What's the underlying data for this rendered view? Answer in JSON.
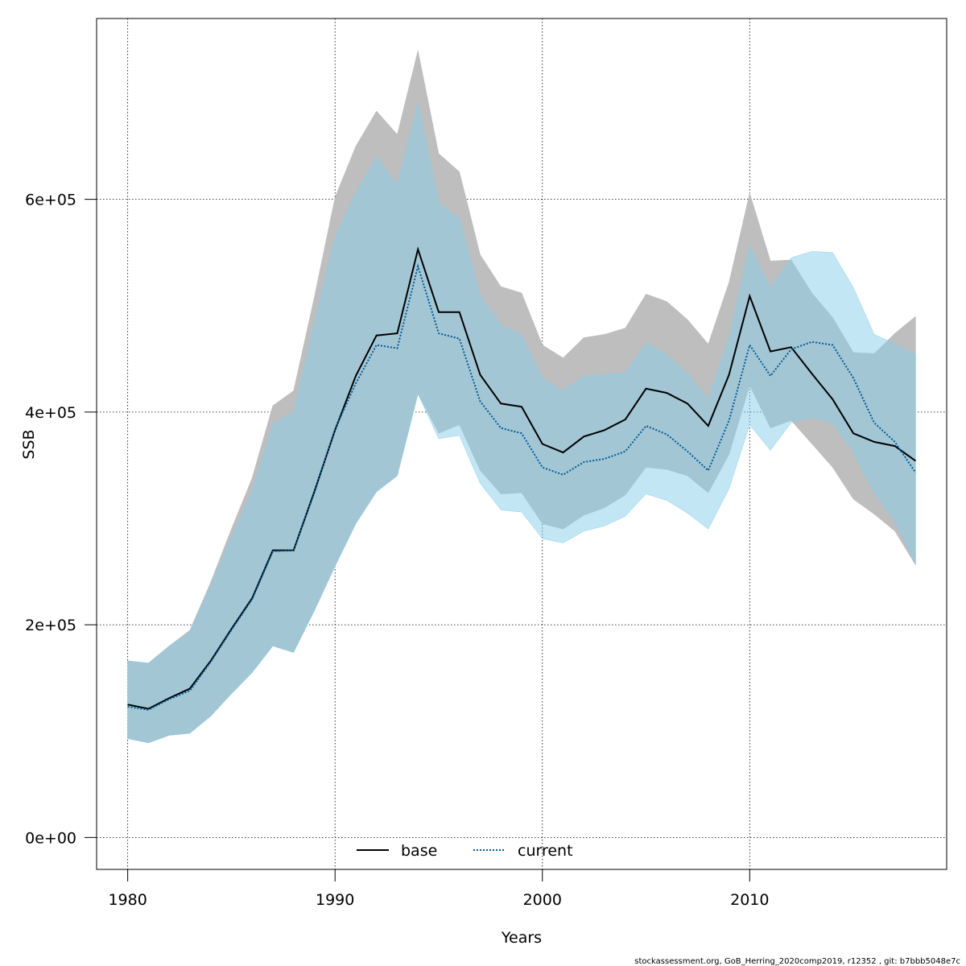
{
  "chart_data": {
    "type": "line",
    "xlabel": "Years",
    "ylabel": "SSB",
    "xlim": [
      1978.5,
      2019.5
    ],
    "ylim": [
      -30000,
      770000
    ],
    "x_ticks": [
      1980,
      1990,
      2000,
      2010
    ],
    "y_ticks": [
      0,
      200000,
      400000,
      600000
    ],
    "y_tick_labels": [
      "0e+00",
      "2e+05",
      "4e+05",
      "6e+05"
    ],
    "grid": true,
    "legend_position": "bottom",
    "x": [
      1980,
      1981,
      1982,
      1983,
      1984,
      1985,
      1986,
      1987,
      1988,
      1989,
      1990,
      1991,
      1992,
      1993,
      1994,
      1995,
      1996,
      1997,
      1998,
      1999,
      2000,
      2001,
      2002,
      2003,
      2004,
      2005,
      2006,
      2007,
      2008,
      2009,
      2010,
      2011,
      2012,
      2013,
      2014,
      2015,
      2016,
      2017,
      2018
    ],
    "series": [
      {
        "name": "base",
        "color": "#000000",
        "line_style": "solid",
        "band_color": "#bebebe",
        "values": [
          125000,
          121000,
          131000,
          140000,
          166000,
          196000,
          225000,
          270000,
          270000,
          325000,
          383000,
          434000,
          472000,
          474000,
          553000,
          494000,
          494000,
          435000,
          408000,
          405000,
          370000,
          362000,
          377000,
          383000,
          393000,
          422000,
          418000,
          408000,
          387000,
          435000,
          509000,
          457000,
          461000,
          436000,
          412000,
          380000,
          372000,
          368000,
          354000
        ],
        "lower": [
          93000,
          89000,
          96000,
          98000,
          114000,
          135000,
          155000,
          180000,
          174000,
          213000,
          255000,
          295000,
          325000,
          340000,
          417000,
          380000,
          388000,
          345000,
          323000,
          324000,
          295000,
          290000,
          303000,
          310000,
          322000,
          348000,
          346000,
          340000,
          324000,
          360000,
          425000,
          385000,
          392000,
          370000,
          348000,
          318000,
          304000,
          288000,
          256000
        ],
        "upper": [
          166000,
          164000,
          180000,
          195000,
          240000,
          290000,
          338000,
          406000,
          420000,
          508000,
          602000,
          650000,
          683000,
          661000,
          740000,
          643000,
          626000,
          548000,
          518000,
          512000,
          463000,
          451000,
          470000,
          473000,
          479000,
          511000,
          504000,
          487000,
          464000,
          522000,
          606000,
          542000,
          543000,
          512000,
          489000,
          456000,
          455000,
          474000,
          490000
        ]
      },
      {
        "name": "current",
        "color": "#005b94",
        "line_style": "dotted",
        "band_color": "#87ceeb",
        "values": [
          123000,
          120000,
          130000,
          138000,
          165000,
          195000,
          224000,
          269000,
          270000,
          324000,
          384000,
          427000,
          463000,
          460000,
          537000,
          474000,
          469000,
          410000,
          385000,
          380000,
          348000,
          341000,
          353000,
          356000,
          363000,
          387000,
          379000,
          363000,
          345000,
          392000,
          463000,
          434000,
          459000,
          466000,
          463000,
          432000,
          390000,
          372000,
          343000
        ],
        "lower": [
          93000,
          89000,
          96000,
          98000,
          114000,
          135000,
          155000,
          180000,
          174000,
          213000,
          255000,
          295000,
          325000,
          340000,
          417000,
          375000,
          378000,
          333000,
          308000,
          306000,
          281000,
          277000,
          288000,
          293000,
          302000,
          323000,
          317000,
          305000,
          290000,
          328000,
          388000,
          364000,
          390000,
          395000,
          390000,
          362000,
          324000,
          297000,
          258000
        ],
        "upper": [
          166000,
          164000,
          180000,
          193000,
          237000,
          283000,
          326000,
          389000,
          400000,
          484000,
          565000,
          606000,
          640000,
          614000,
          690000,
          597000,
          582000,
          510000,
          482000,
          473000,
          432000,
          420000,
          434000,
          435000,
          437000,
          465000,
          454000,
          436000,
          412000,
          470000,
          557000,
          517000,
          545000,
          551000,
          550000,
          517000,
          473000,
          464000,
          454000
        ]
      }
    ]
  },
  "footer": "stockassessment.org, GoB_Herring_2020comp2019, r12352 , git: b7bbb5048e7c"
}
